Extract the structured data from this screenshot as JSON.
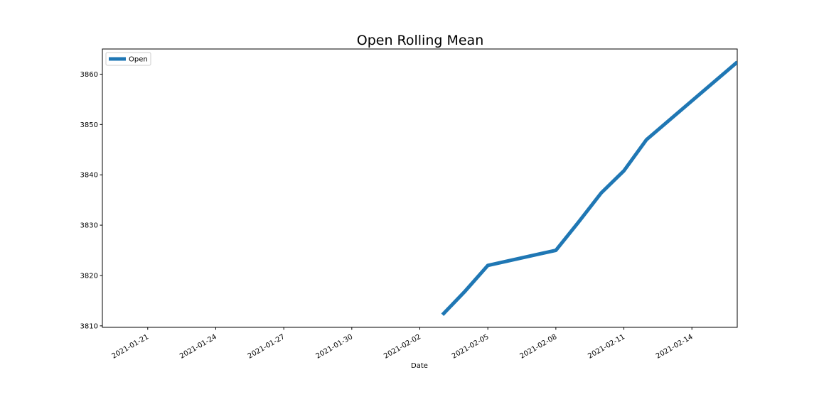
{
  "chart_data": {
    "type": "line",
    "title": "Open Rolling Mean",
    "xlabel": "Date",
    "ylabel": "",
    "x_type": "date",
    "xlim": [
      "2021-01-19",
      "2021-02-16"
    ],
    "ylim": [
      3809.7,
      3865.0
    ],
    "x_ticks": [
      "2021-01-21",
      "2021-01-24",
      "2021-01-27",
      "2021-01-30",
      "2021-02-02",
      "2021-02-05",
      "2021-02-08",
      "2021-02-11",
      "2021-02-14"
    ],
    "y_ticks": [
      3810,
      3820,
      3830,
      3840,
      3850,
      3860
    ],
    "legend": {
      "position": "top-left",
      "entries": [
        "Open"
      ]
    },
    "grid": false,
    "series": [
      {
        "name": "Open",
        "color": "#1f77b4",
        "x": [
          "2021-02-03",
          "2021-02-04",
          "2021-02-05",
          "2021-02-08",
          "2021-02-09",
          "2021-02-10",
          "2021-02-11",
          "2021-02-12",
          "2021-02-16"
        ],
        "values": [
          3812.2,
          3816.9,
          3822.0,
          3825.0,
          3830.6,
          3836.4,
          3840.8,
          3847.0,
          3862.4
        ]
      }
    ]
  }
}
